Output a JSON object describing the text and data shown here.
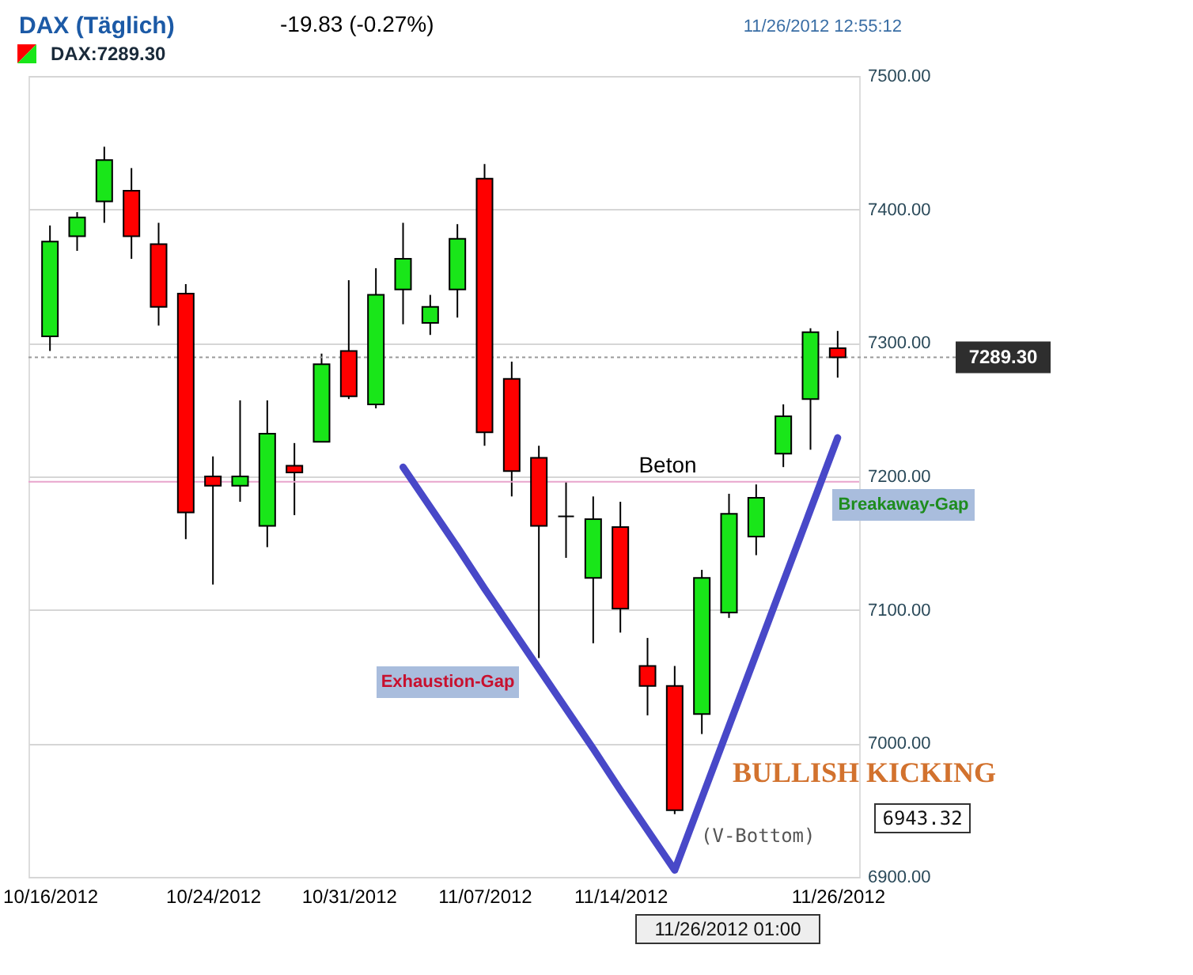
{
  "chart_data": {
    "type": "candlestick",
    "title": "DAX (Täglich)",
    "subtitle": "-19.83 (-0.27%)",
    "categories": [
      "10/16/2012",
      null,
      null,
      null,
      null,
      null,
      "10/24/2012",
      null,
      null,
      null,
      null,
      "10/31/2012",
      null,
      null,
      null,
      null,
      "11/07/2012",
      null,
      null,
      null,
      null,
      "11/14/2012",
      null,
      null,
      null,
      null,
      null,
      null,
      null,
      "11/26/2012"
    ],
    "ylim": [
      6900,
      7500
    ],
    "yticks": [
      {
        "value": 6900,
        "label": "6900.00"
      },
      {
        "value": 7000,
        "label": "7000.00"
      },
      {
        "value": 7100,
        "label": "7100.00"
      },
      {
        "value": 7200,
        "label": "7200.00"
      },
      {
        "value": 7300,
        "label": "7300.00"
      },
      {
        "value": 7400,
        "label": "7400.00"
      },
      {
        "value": 7500,
        "label": "7500.00"
      }
    ],
    "grid": "y",
    "legend": "top left",
    "series": [
      {
        "name": "DAX:7289.30",
        "ohlc": [
          [
            7305,
            7388,
            7294,
            7376
          ],
          [
            7380,
            7398,
            7369,
            7394
          ],
          [
            7406,
            7447,
            7390,
            7437
          ],
          [
            7414,
            7431,
            7363,
            7380
          ],
          [
            7374,
            7390,
            7313,
            7327
          ],
          [
            7337,
            7344,
            7153,
            7173
          ],
          [
            7200,
            7215,
            7119,
            7193
          ],
          [
            7193,
            7257,
            7181,
            7200
          ],
          [
            7163,
            7257,
            7147,
            7232
          ],
          [
            7208,
            7225,
            7171,
            7203
          ],
          [
            7226,
            7292,
            7226,
            7284
          ],
          [
            7294,
            7347,
            7258,
            7260
          ],
          [
            7254,
            7356,
            7251,
            7336
          ],
          [
            7340,
            7390,
            7314,
            7363
          ],
          [
            7315,
            7336,
            7306,
            7327
          ],
          [
            7340,
            7389,
            7319,
            7378
          ],
          [
            7423,
            7434,
            7223,
            7233
          ],
          [
            7273,
            7286,
            7185,
            7204
          ],
          [
            7214,
            7223,
            7064,
            7163
          ],
          [
            7170,
            7196,
            7139,
            7170
          ],
          [
            7124,
            7185,
            7075,
            7168
          ],
          [
            7162,
            7181,
            7083,
            7101
          ],
          [
            7058,
            7079,
            7021,
            7043
          ],
          [
            7043,
            7058,
            6947,
            6950
          ],
          [
            7022,
            7130,
            7007,
            7124
          ],
          [
            7098,
            7187,
            7094,
            7172
          ],
          [
            7155,
            7194,
            7141,
            7184
          ],
          [
            7217,
            7254,
            7207,
            7245
          ],
          [
            7258,
            7311,
            7220,
            7308
          ],
          [
            7296,
            7309,
            7274,
            7289.3
          ]
        ],
        "colors": [
          "#19e619",
          "#19e619",
          "#19e619",
          "#ff0000",
          "#ff0000",
          "#ff0000",
          "#ff0000",
          "#19e619",
          "#19e619",
          "#ff0000",
          "#19e619",
          "#ff0000",
          "#19e619",
          "#19e619",
          "#19e619",
          "#19e619",
          "#ff0000",
          "#ff0000",
          "#ff0000",
          "#000000",
          "#19e619",
          "#ff0000",
          "#ff0000",
          "#ff0000",
          "#19e619",
          "#19e619",
          "#19e619",
          "#19e619",
          "#19e619",
          "#ff0000"
        ]
      },
      {
        "type": "line",
        "color": "#4848c8",
        "values": [
          null,
          null,
          null,
          null,
          null,
          null,
          null,
          null,
          null,
          null,
          null,
          null,
          null,
          7207,
          7177,
          7147,
          7116,
          7086,
          7056,
          7026,
          6996,
          6965,
          6935,
          6905,
          6959,
          7013,
          7067,
          7121,
          7175,
          7229
        ]
      }
    ],
    "ref_lines": [
      {
        "axis": "y",
        "value": 7289.3,
        "label": "7289.30",
        "line_style": "dotted",
        "color": "#999999"
      },
      {
        "axis": "y",
        "value": 7196,
        "label": "Beton",
        "color": "#e8a4cc"
      }
    ],
    "annotations": [
      "11/26/2012 12:55:12",
      "Exhaustion-Gap",
      "Breakaway-Gap",
      "BULLISH KICKING",
      "(V-Bottom)",
      "6943.32",
      "11/26/2012 01:00"
    ]
  }
}
